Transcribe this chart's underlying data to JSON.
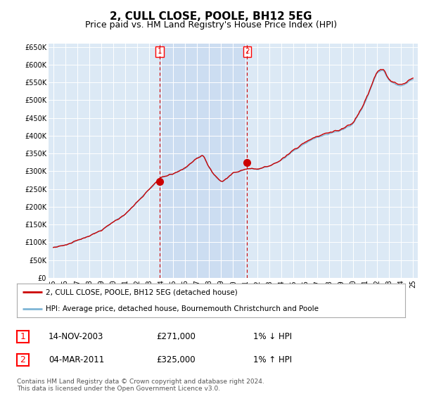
{
  "title": "2, CULL CLOSE, POOLE, BH12 5EG",
  "subtitle": "Price paid vs. HM Land Registry's House Price Index (HPI)",
  "title_fontsize": 11,
  "subtitle_fontsize": 9,
  "background_color": "#ffffff",
  "plot_bg_color": "#dce9f5",
  "grid_color": "#ffffff",
  "shade_color": "#c8dbf0",
  "ylim": [
    0,
    660000
  ],
  "yticks": [
    0,
    50000,
    100000,
    150000,
    200000,
    250000,
    300000,
    350000,
    400000,
    450000,
    500000,
    550000,
    600000,
    650000
  ],
  "ytick_labels": [
    "£0",
    "£50K",
    "£100K",
    "£150K",
    "£200K",
    "£250K",
    "£300K",
    "£350K",
    "£400K",
    "£450K",
    "£500K",
    "£550K",
    "£600K",
    "£650K"
  ],
  "hpi_color": "#7eb5d6",
  "price_color": "#cc0000",
  "marker_color": "#cc0000",
  "sale1_year": 2003.87,
  "sale1_price": 271000,
  "sale2_year": 2011.17,
  "sale2_price": 325000,
  "legend_line1": "2, CULL CLOSE, POOLE, BH12 5EG (detached house)",
  "legend_line2": "HPI: Average price, detached house, Bournemouth Christchurch and Poole",
  "footnote_line1": "Contains HM Land Registry data © Crown copyright and database right 2024.",
  "footnote_line2": "This data is licensed under the Open Government Licence v3.0.",
  "table_row1": [
    "1",
    "14-NOV-2003",
    "£271,000",
    "1% ↓ HPI"
  ],
  "table_row2": [
    "2",
    "04-MAR-2011",
    "£325,000",
    "1% ↑ HPI"
  ],
  "xlim_start": 1994.6,
  "xlim_end": 2025.4,
  "xtick_labels": [
    "95",
    "96",
    "97",
    "98",
    "99",
    "00",
    "01",
    "02",
    "03",
    "04",
    "05",
    "06",
    "07",
    "08",
    "09",
    "10",
    "11",
    "12",
    "13",
    "14",
    "15",
    "16",
    "17",
    "18",
    "19",
    "20",
    "21",
    "22",
    "23",
    "24",
    "25"
  ]
}
